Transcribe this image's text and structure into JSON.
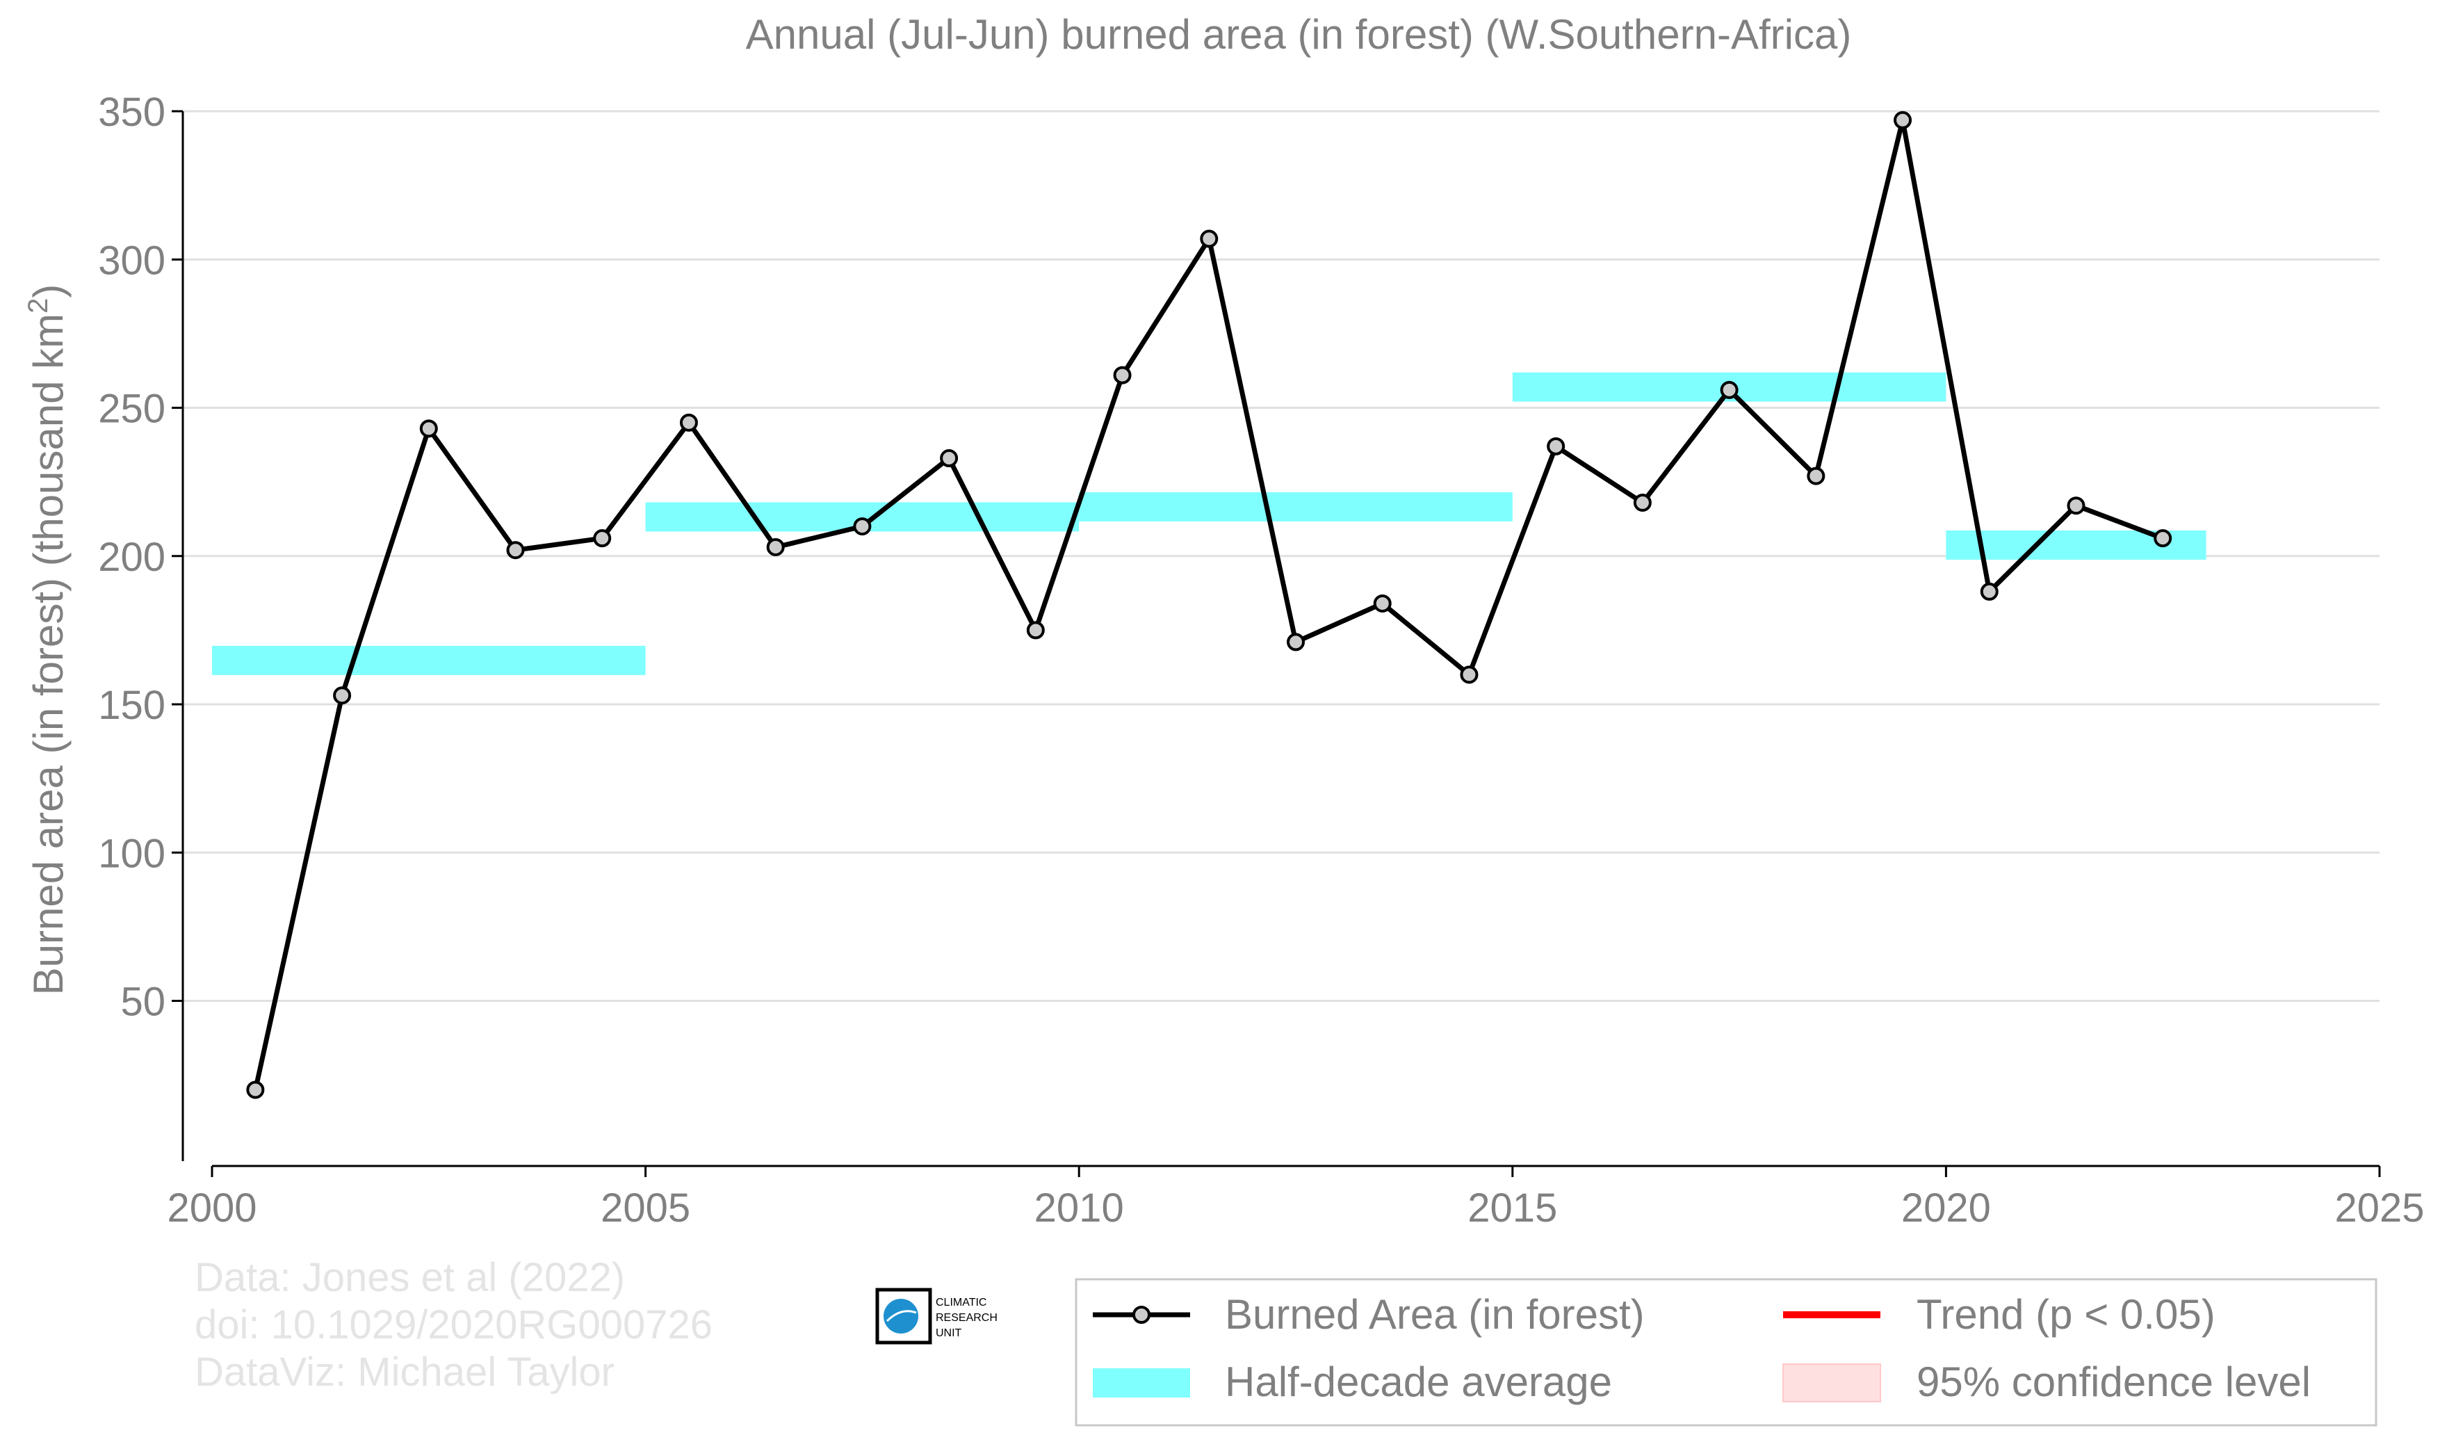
{
  "chart_data": {
    "type": "line",
    "title": "Annual (Jul-Jun) burned area (in forest) (W.Southern-Africa)",
    "ylabel": "Burned area (in forest) (thousand km",
    "ylabel_sup": "2",
    "ylabel_close": ")",
    "xlabel": "",
    "xlim": [
      2000,
      2025
    ],
    "ylim": [
      0,
      350
    ],
    "xticks": [
      "2000",
      "2005",
      "2010",
      "2015",
      "2020",
      "2025"
    ],
    "yticks": [
      "50",
      "100",
      "150",
      "200",
      "250",
      "300",
      "350"
    ],
    "grid": "horizontal",
    "series": [
      {
        "name": "Burned Area (in forest)",
        "type": "line-with-markers",
        "color": "#000000",
        "marker_fill": "#cccccc",
        "x": [
          2000.5,
          2001.5,
          2002.5,
          2003.5,
          2004.5,
          2005.5,
          2006.5,
          2007.5,
          2008.5,
          2009.5,
          2010.5,
          2011.5,
          2012.5,
          2013.5,
          2014.5,
          2015.5,
          2016.5,
          2017.5,
          2018.5,
          2019.5,
          2020.5,
          2021.5,
          2022.5
        ],
        "y": [
          20,
          153,
          243,
          202,
          206,
          245,
          203,
          210,
          233,
          175,
          261,
          307,
          171,
          184,
          160,
          237,
          218,
          256,
          227,
          347,
          188,
          217,
          206
        ]
      },
      {
        "name": "Half-decade average",
        "type": "band",
        "color": "#80ffff",
        "segments": [
          {
            "x0": 2000,
            "x1": 2005,
            "y": 164.8
          },
          {
            "x0": 2005,
            "x1": 2010,
            "y": 213.2
          },
          {
            "x0": 2010,
            "x1": 2015,
            "y": 216.6
          },
          {
            "x0": 2015,
            "x1": 2020,
            "y": 257.0
          },
          {
            "x0": 2020,
            "x1": 2023,
            "y": 203.7
          }
        ]
      }
    ],
    "legend": {
      "placement": "bottom-right",
      "items": [
        {
          "label": "Burned Area (in forest)",
          "kind": "line-marker",
          "color": "#000000"
        },
        {
          "label": "Trend (p < 0.05)",
          "kind": "line",
          "color": "#ff0000"
        },
        {
          "label": "Half-decade average",
          "kind": "band",
          "color": "#80ffff"
        },
        {
          "label": "95% confidence level",
          "kind": "patch",
          "color": "#ffe0e0"
        }
      ]
    }
  },
  "credits": {
    "line1": "Data: Jones et al (2022)",
    "line2": "doi: 10.1029/2020RG000726",
    "line3": "DataViz: Michael Taylor"
  },
  "logo": {
    "line1": "CLIMATIC",
    "line2": "RESEARCH",
    "line3": "UNIT"
  },
  "colors": {
    "axis_text": "#808080",
    "grid": "#e0e0e0",
    "credits": "#e4e4e4"
  }
}
